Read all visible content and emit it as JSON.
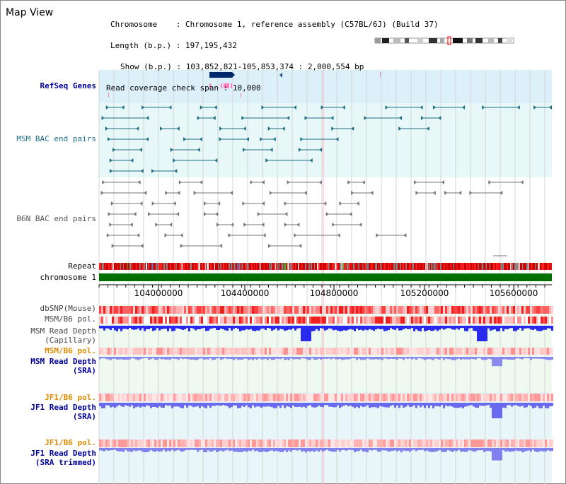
{
  "view_title": "Map View",
  "info": {
    "chromosome_label": "Chromosome",
    "chromosome_value": "Chromosome 1, reference assembly (C57BL/6J) (Build 37)",
    "length_label": "Length (b.p.)",
    "length_value": "197,195,432",
    "show_label": "Show (b.p.)",
    "show_value": "103,852,821-105,853,374 : 2,000,554 bp",
    "span_label": "Read coverage check span",
    "span_value": "10,000"
  },
  "tracks": {
    "refseq": "RefSeq Genes",
    "msm_bac": "MSM BAC end pairs",
    "b6n_bac": "B6N BAC end pairs",
    "repeat": "Repeat",
    "chromosome": "chromosome 1",
    "dbsnp": "dbSNP(Mouse)",
    "msm_b6_pol_1": "MSM/B6 pol.",
    "msm_depth_cap_1": "MSM Read Depth",
    "msm_depth_cap_2": "(Capillary)",
    "msm_b6_pol_2": "MSM/B6 pol.",
    "msm_depth_sra_1": "MSM Read Depth",
    "msm_depth_sra_2": "(SRA)",
    "jf1_pol_1": "JF1/B6 pol.",
    "jf1_depth_sra_1": "JF1 Read Depth",
    "jf1_depth_sra_2": "(SRA)",
    "jf1_pol_2": "JF1/B6 pol.",
    "jf1_depth_trim_1": "JF1 Read Depth",
    "jf1_depth_trim_2": "(SRA trimmed)"
  },
  "axis": {
    "ticks": [
      "104000000",
      "104400000",
      "104800000",
      "105200000",
      "105600000"
    ]
  },
  "colors": {
    "refseq_bg": "#dcf0fa",
    "bac_bg": "#e8f8f8",
    "depth_bg": "#eefaf0",
    "teal": "#1e6e86",
    "gray": "#777777",
    "chrom_green": "#007000",
    "snp_red": "#ee2222",
    "depth_blue": "#2020ee",
    "depth_light": "#7777ee"
  }
}
